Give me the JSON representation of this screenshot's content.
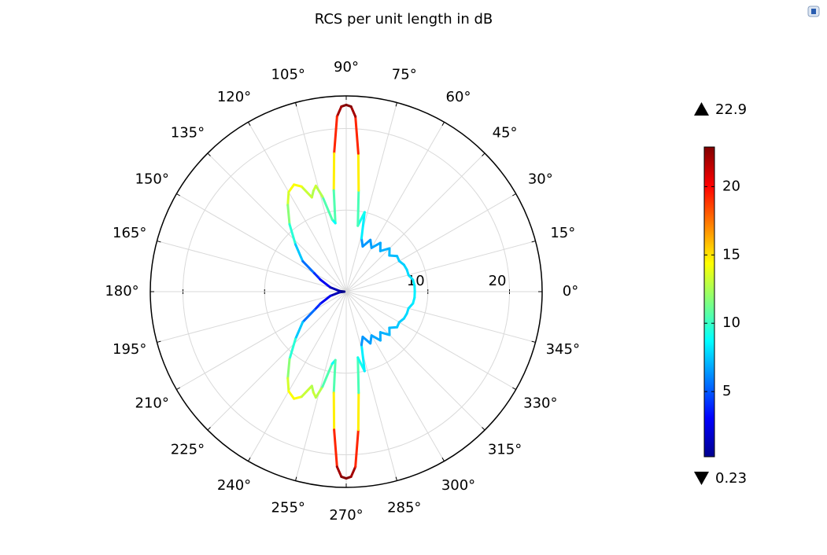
{
  "chart_data": {
    "type": "polar",
    "title": "RCS per unit length in dB",
    "x": [
      0,
      5,
      10,
      15,
      20,
      25,
      30,
      35,
      40,
      45,
      50,
      55,
      60,
      65,
      70,
      74,
      77,
      80,
      83,
      85,
      87,
      88.5,
      90,
      91.5,
      93,
      95,
      97,
      99,
      101,
      104,
      106,
      108,
      110,
      113,
      116,
      120,
      124,
      130,
      137,
      145,
      150,
      155,
      165,
      175,
      180,
      185,
      195,
      205,
      210,
      215,
      223,
      230,
      236,
      240,
      244,
      247,
      250,
      252,
      254,
      256,
      259,
      261,
      263,
      265,
      267,
      268.5,
      270,
      271.5,
      273,
      275,
      277,
      280,
      283,
      286,
      290,
      295,
      300,
      305,
      310,
      315,
      320,
      325,
      330,
      335,
      340,
      345,
      350,
      355
    ],
    "values": [
      8.4,
      8.4,
      8.3,
      7.9,
      7.9,
      7.8,
      7.5,
      7.6,
      6.9,
      7.5,
      6.5,
      7.3,
      6.2,
      7.0,
      5.9,
      6.8,
      10.0,
      8.2,
      12.5,
      17.0,
      21.5,
      22.7,
      22.9,
      22.7,
      21.5,
      17.0,
      12.5,
      8.5,
      9.0,
      12.0,
      13.5,
      13.0,
      12.3,
      14.0,
      14.6,
      14.1,
      12.8,
      10.8,
      8.5,
      6.5,
      4.5,
      3.5,
      2.0,
      0.8,
      0.23,
      0.8,
      2.0,
      3.5,
      4.5,
      6.5,
      8.5,
      10.8,
      12.8,
      14.1,
      14.6,
      14.0,
      12.3,
      13.0,
      13.5,
      12.0,
      9.0,
      8.5,
      12.5,
      17.0,
      21.5,
      22.7,
      22.9,
      22.7,
      21.5,
      17.0,
      12.5,
      8.2,
      10.0,
      6.8,
      5.9,
      7.0,
      6.2,
      7.3,
      6.5,
      7.5,
      6.9,
      7.6,
      7.5,
      7.8,
      7.9,
      7.9,
      8.3,
      8.4
    ],
    "rlim": [
      0,
      24
    ],
    "rticks": [
      10,
      20
    ],
    "xticks": [
      {
        "value": 0,
        "label": "0°"
      },
      {
        "value": 15,
        "label": "15°"
      },
      {
        "value": 30,
        "label": "30°"
      },
      {
        "value": 45,
        "label": "45°"
      },
      {
        "value": 60,
        "label": "60°"
      },
      {
        "value": 75,
        "label": "75°"
      },
      {
        "value": 90,
        "label": "90°"
      },
      {
        "value": 105,
        "label": "105°"
      },
      {
        "value": 120,
        "label": "120°"
      },
      {
        "value": 135,
        "label": "135°"
      },
      {
        "value": 150,
        "label": "150°"
      },
      {
        "value": 165,
        "label": "165°"
      },
      {
        "value": 180,
        "label": "180°"
      },
      {
        "value": 195,
        "label": "195°"
      },
      {
        "value": 210,
        "label": "210°"
      },
      {
        "value": 225,
        "label": "225°"
      },
      {
        "value": 240,
        "label": "240°"
      },
      {
        "value": 255,
        "label": "255°"
      },
      {
        "value": 270,
        "label": "270°"
      },
      {
        "value": 285,
        "label": "285°"
      },
      {
        "value": 300,
        "label": "300°"
      },
      {
        "value": 315,
        "label": "315°"
      },
      {
        "value": 330,
        "label": "330°"
      },
      {
        "value": 345,
        "label": "345°"
      }
    ],
    "grid": true,
    "colormap": "jet",
    "clim": [
      0.23,
      22.9
    ],
    "colorbar_ticks": [
      5,
      10,
      15,
      20
    ]
  }
}
